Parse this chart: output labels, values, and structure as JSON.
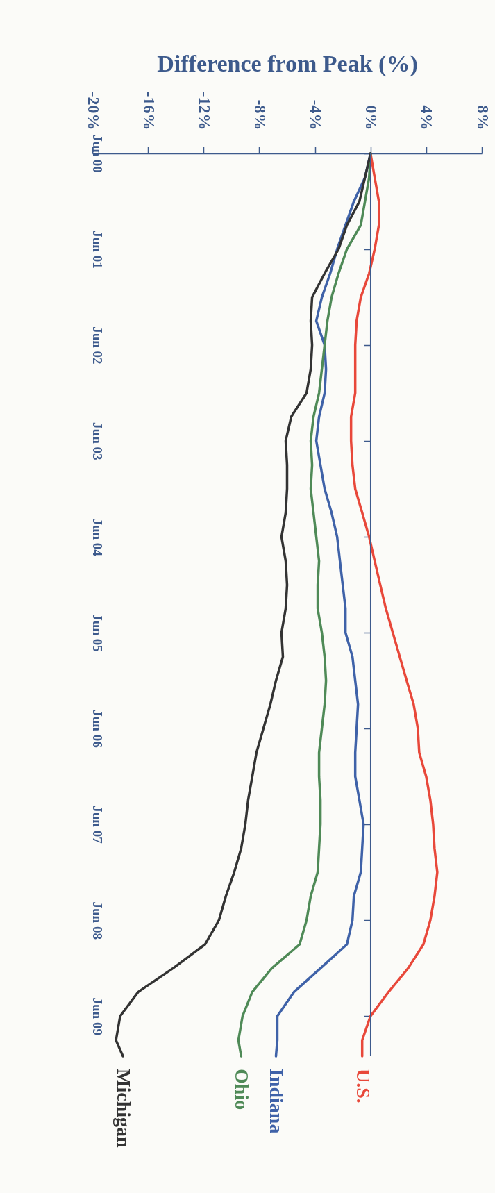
{
  "chart_data": {
    "type": "line",
    "xlabel": "Difference from Peak (%)",
    "x": [
      "2000-06",
      "2000-09",
      "2000-12",
      "2001-03",
      "2001-06",
      "2001-09",
      "2001-12",
      "2002-03",
      "2002-06",
      "2002-09",
      "2002-12",
      "2003-03",
      "2003-06",
      "2003-09",
      "2003-12",
      "2004-03",
      "2004-06",
      "2004-09",
      "2004-12",
      "2005-03",
      "2005-06",
      "2005-09",
      "2005-12",
      "2006-03",
      "2006-06",
      "2006-09",
      "2006-12",
      "2007-03",
      "2007-06",
      "2007-09",
      "2007-12",
      "2008-03",
      "2008-06",
      "2008-09",
      "2008-12",
      "2009-03",
      "2009-06",
      "2009-09",
      "2009-11"
    ],
    "series": [
      {
        "name": "U.S.",
        "color": "#e8483a",
        "values": [
          0,
          0.3,
          0.6,
          0.6,
          0.3,
          -0.1,
          -0.7,
          -1.0,
          -1.1,
          -1.1,
          -1.1,
          -1.4,
          -1.4,
          -1.3,
          -1.1,
          -0.6,
          -0.1,
          0.3,
          0.7,
          1.1,
          1.6,
          2.1,
          2.6,
          3.1,
          3.4,
          3.5,
          4.0,
          4.3,
          4.5,
          4.6,
          4.8,
          4.6,
          4.3,
          3.8,
          2.7,
          1.3,
          0,
          -0.6,
          -0.6
        ]
      },
      {
        "name": "Indiana",
        "color": "#3f62a8",
        "values": [
          0,
          -0.4,
          -1.2,
          -1.8,
          -2.4,
          -2.9,
          -3.5,
          -3.9,
          -3.3,
          -3.2,
          -3.3,
          -3.7,
          -3.9,
          -3.6,
          -3.3,
          -2.8,
          -2.4,
          -2.2,
          -2.0,
          -1.8,
          -1.8,
          -1.3,
          -1.1,
          -0.9,
          -1.0,
          -1.1,
          -1.1,
          -0.8,
          -0.5,
          -0.6,
          -0.7,
          -1.2,
          -1.3,
          -1.7,
          -3.6,
          -5.5,
          -6.7,
          -6.7,
          -6.8
        ]
      },
      {
        "name": "Ohio",
        "color": "#4f8a57",
        "values": [
          0,
          -0.1,
          -0.4,
          -0.7,
          -1.7,
          -2.3,
          -2.8,
          -3.1,
          -3.3,
          -3.5,
          -3.7,
          -4.1,
          -4.3,
          -4.2,
          -4.3,
          -4.1,
          -3.9,
          -3.7,
          -3.8,
          -3.8,
          -3.5,
          -3.3,
          -3.2,
          -3.3,
          -3.5,
          -3.7,
          -3.7,
          -3.6,
          -3.6,
          -3.7,
          -3.8,
          -4.3,
          -4.6,
          -5.1,
          -7.1,
          -8.5,
          -9.2,
          -9.5,
          -9.3
        ]
      },
      {
        "name": "Michigan",
        "color": "#333333",
        "values": [
          0,
          -0.4,
          -0.8,
          -1.7,
          -2.3,
          -3.3,
          -4.2,
          -4.3,
          -4.2,
          -4.3,
          -4.6,
          -5.7,
          -6.1,
          -6.0,
          -6.0,
          -6.1,
          -6.4,
          -6.1,
          -6.0,
          -6.1,
          -6.4,
          -6.3,
          -6.8,
          -7.2,
          -7.7,
          -8.2,
          -8.5,
          -8.8,
          -9.0,
          -9.3,
          -9.8,
          -10.4,
          -10.9,
          -11.9,
          -14.2,
          -16.7,
          -18.0,
          -18.3,
          -17.8
        ]
      }
    ],
    "orientation": "horizontal",
    "ylim": [
      "2009-11",
      "2000-06"
    ],
    "yticks": [
      {
        "value": "2000-06",
        "label": "Jun 00"
      },
      {
        "value": "2001-06",
        "label": "Jun 01"
      },
      {
        "value": "2002-06",
        "label": "Jun 02"
      },
      {
        "value": "2003-06",
        "label": "Jun 03"
      },
      {
        "value": "2004-06",
        "label": "Jun 04"
      },
      {
        "value": "2005-06",
        "label": "Jun 05"
      },
      {
        "value": "2006-06",
        "label": "Jun 06"
      },
      {
        "value": "2007-06",
        "label": "Jun 07"
      },
      {
        "value": "2008-06",
        "label": "Jun 08"
      },
      {
        "value": "2009-06",
        "label": "Jun 09"
      }
    ],
    "xlim": [
      -20,
      8
    ],
    "xticks": [
      {
        "value": -20,
        "label": "-20%"
      },
      {
        "value": -16,
        "label": "-16%"
      },
      {
        "value": -12,
        "label": "-12%"
      },
      {
        "value": -8,
        "label": "-8%"
      },
      {
        "value": -4,
        "label": "-4%"
      },
      {
        "value": 0,
        "label": "0%"
      },
      {
        "value": 4,
        "label": "4%"
      },
      {
        "value": 8,
        "label": "8%"
      }
    ],
    "ref_lines": [
      {
        "axis": "x",
        "value": 0,
        "color": "#3d5a8c"
      }
    ],
    "line_style": "solid",
    "marker": "none"
  }
}
